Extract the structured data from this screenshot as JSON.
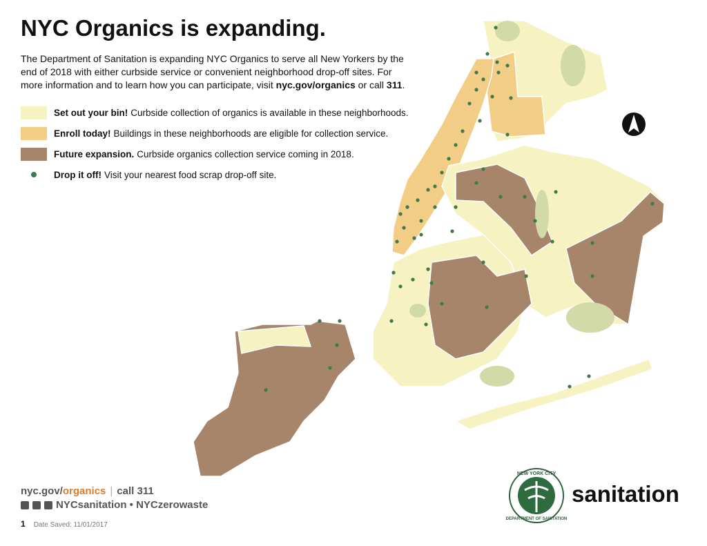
{
  "header": {
    "title": "NYC Organics is expanding.",
    "intro": {
      "before": "The Department of Sanitation is expanding NYC Organics to serve all New Yorkers by the end of 2018 with either curbside service or convenient neighborhood drop-off sites. For more information and to learn how you can participate, visit ",
      "link": "nyc.gov/organics",
      "middle": " or call ",
      "phone": "311",
      "after": "."
    }
  },
  "legend": [
    {
      "label": "Set out your bin!",
      "text": "Curbside collection of organics is available in these neighborhoods.",
      "color": "#f6f2c2",
      "symbol": "square"
    },
    {
      "label": "Enroll today!",
      "text": "Buildings in these neighborhoods are eligible for collection service.",
      "color": "#f1cd86",
      "symbol": "square"
    },
    {
      "label": "Future expansion.",
      "text": "Curbside organics collection service coming in 2018.",
      "color": "#a7856a",
      "symbol": "square"
    },
    {
      "label": "Drop it off!",
      "text": "Visit your nearest food scrap drop-off site.",
      "color": "#3e7a4d",
      "symbol": "dot"
    }
  ],
  "footer": {
    "url_prefix": "nyc.gov/",
    "url_suffix": "organics",
    "separator": "|",
    "call": "call 311",
    "social": "NYCsanitation • NYCzerowaste",
    "page": "1",
    "date": "Date Saved: 11/01/2017"
  },
  "logo": {
    "ring_top": "NEW YORK CITY",
    "ring_bottom": "DEPARTMENT OF SANITATION",
    "wordmark": "sanitation"
  }
}
